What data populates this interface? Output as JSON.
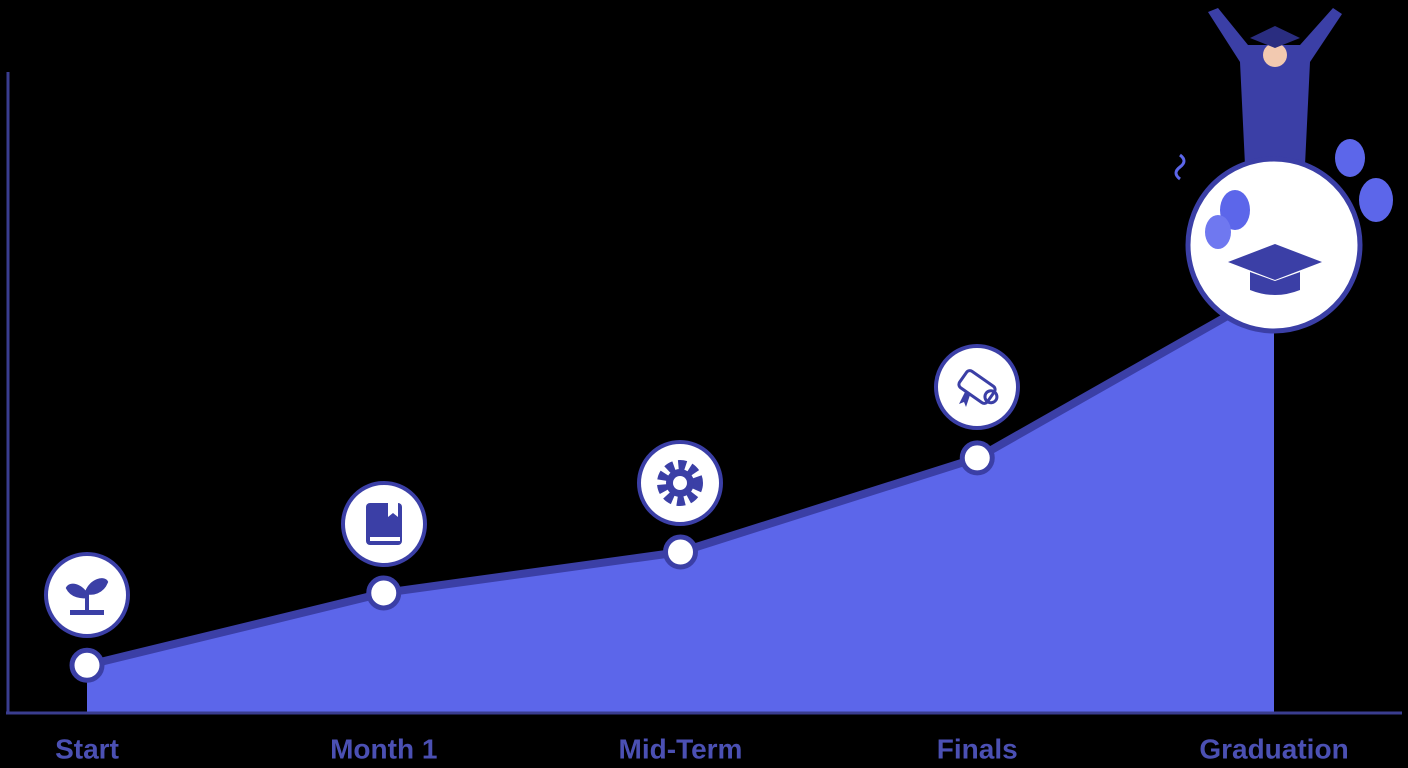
{
  "chart_data": {
    "type": "area",
    "categories": [
      "Start",
      "Month 1",
      "Mid-Term",
      "Finals",
      "Graduation"
    ],
    "values": [
      7.3,
      18.6,
      25,
      39.7,
      66
    ],
    "color": "#5c66ea",
    "line_color": "#3b3fa6",
    "ylim": [
      0,
      100
    ]
  }
}
